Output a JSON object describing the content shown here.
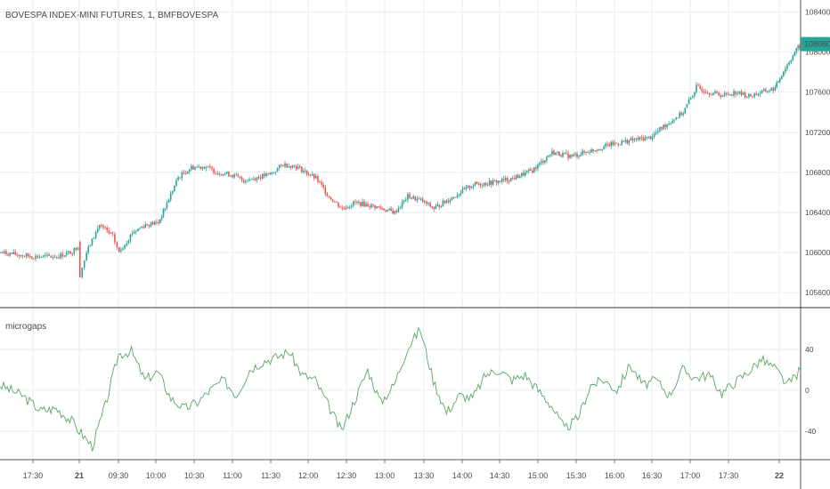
{
  "header": {
    "symbol_title": "BOVESPA INDEX-MINI FUTURES, 1, BMFBOVESPA"
  },
  "colors": {
    "up": "#26a69a",
    "down": "#ef5350",
    "grid": "#e7eef3",
    "indicator_line": "#5aa563",
    "price_tag_bg": "#26a69a",
    "price_tag_text": "#ffffff"
  },
  "main_pane": {
    "y_ticks": [
      "108400.0",
      "108000.0",
      "107600.0",
      "107200.0",
      "106800.0",
      "106400.0",
      "106000.0",
      "105600.0"
    ],
    "last_price": "108080.0"
  },
  "indicator_pane": {
    "name": "microgaps",
    "y_ticks": [
      "40",
      "0",
      "-40"
    ]
  },
  "x_axis": {
    "ticks": [
      "17:30",
      "21",
      "09:30",
      "10:00",
      "10:30",
      "11:00",
      "11:30",
      "12:00",
      "12:30",
      "13:00",
      "13:30",
      "14:00",
      "14:30",
      "15:00",
      "15:30",
      "16:00",
      "16:30",
      "17:00",
      "17:30",
      "22"
    ]
  },
  "chart_data": [
    {
      "type": "candlestick",
      "title": "BOVESPA INDEX-MINI FUTURES, 1, BMFBOVESPA",
      "ylim": [
        105460,
        108520
      ],
      "price_path": [
        {
          "x": "17:15",
          "y": 106000
        },
        {
          "x": "17:30",
          "y": 105960
        },
        {
          "x": "17:45",
          "y": 105960
        },
        {
          "x": "17:55",
          "y": 106010
        },
        {
          "x": "18:00",
          "y": 106090
        },
        {
          "x": "09:00",
          "y": 105780
        },
        {
          "x": "09:05",
          "y": 106000
        },
        {
          "x": "09:15",
          "y": 106280
        },
        {
          "x": "09:25",
          "y": 106160
        },
        {
          "x": "09:30",
          "y": 106000
        },
        {
          "x": "09:40",
          "y": 106200
        },
        {
          "x": "09:50",
          "y": 106280
        },
        {
          "x": "10:00",
          "y": 106300
        },
        {
          "x": "10:05",
          "y": 106450
        },
        {
          "x": "10:15",
          "y": 106750
        },
        {
          "x": "10:25",
          "y": 106850
        },
        {
          "x": "10:35",
          "y": 106860
        },
        {
          "x": "10:45",
          "y": 106800
        },
        {
          "x": "10:55",
          "y": 106780
        },
        {
          "x": "11:05",
          "y": 106720
        },
        {
          "x": "11:15",
          "y": 106750
        },
        {
          "x": "11:25",
          "y": 106780
        },
        {
          "x": "11:35",
          "y": 106880
        },
        {
          "x": "11:45",
          "y": 106860
        },
        {
          "x": "12:00",
          "y": 106740
        },
        {
          "x": "12:10",
          "y": 106560
        },
        {
          "x": "12:20",
          "y": 106440
        },
        {
          "x": "12:30",
          "y": 106500
        },
        {
          "x": "12:45",
          "y": 106460
        },
        {
          "x": "13:00",
          "y": 106400
        },
        {
          "x": "13:10",
          "y": 106560
        },
        {
          "x": "13:20",
          "y": 106520
        },
        {
          "x": "13:30",
          "y": 106440
        },
        {
          "x": "13:45",
          "y": 106560
        },
        {
          "x": "14:00",
          "y": 106680
        },
        {
          "x": "14:15",
          "y": 106700
        },
        {
          "x": "14:30",
          "y": 106740
        },
        {
          "x": "14:45",
          "y": 106820
        },
        {
          "x": "15:00",
          "y": 107000
        },
        {
          "x": "15:15",
          "y": 106960
        },
        {
          "x": "15:30",
          "y": 107020
        },
        {
          "x": "15:45",
          "y": 107080
        },
        {
          "x": "16:00",
          "y": 107120
        },
        {
          "x": "16:15",
          "y": 107150
        },
        {
          "x": "16:25",
          "y": 107260
        },
        {
          "x": "16:40",
          "y": 107400
        },
        {
          "x": "16:50",
          "y": 107650
        },
        {
          "x": "17:00",
          "y": 107600
        },
        {
          "x": "17:10",
          "y": 107570
        },
        {
          "x": "17:20",
          "y": 107600
        },
        {
          "x": "17:30",
          "y": 107560
        },
        {
          "x": "17:40",
          "y": 107600
        },
        {
          "x": "17:50",
          "y": 107640
        },
        {
          "x": "17:55",
          "y": 107780
        },
        {
          "x": "18:05",
          "y": 108000
        },
        {
          "x": "18:10",
          "y": 108080
        }
      ]
    },
    {
      "type": "line",
      "title": "microgaps",
      "ylim": [
        -68,
        80
      ],
      "values": [
        {
          "x": "17:15",
          "y": 5
        },
        {
          "x": "17:25",
          "y": -5
        },
        {
          "x": "17:35",
          "y": -20
        },
        {
          "x": "17:45",
          "y": -18
        },
        {
          "x": "17:55",
          "y": -30
        },
        {
          "x": "09:00",
          "y": -40
        },
        {
          "x": "09:10",
          "y": -55
        },
        {
          "x": "09:20",
          "y": -15
        },
        {
          "x": "09:30",
          "y": 35
        },
        {
          "x": "09:40",
          "y": 38
        },
        {
          "x": "09:50",
          "y": 10
        },
        {
          "x": "10:00",
          "y": 18
        },
        {
          "x": "10:10",
          "y": -8
        },
        {
          "x": "10:20",
          "y": -18
        },
        {
          "x": "10:30",
          "y": -12
        },
        {
          "x": "10:40",
          "y": 0
        },
        {
          "x": "10:50",
          "y": 10
        },
        {
          "x": "11:00",
          "y": -5
        },
        {
          "x": "11:10",
          "y": 20
        },
        {
          "x": "11:20",
          "y": 28
        },
        {
          "x": "11:30",
          "y": 32
        },
        {
          "x": "11:40",
          "y": 38
        },
        {
          "x": "11:50",
          "y": 15
        },
        {
          "x": "12:00",
          "y": 10
        },
        {
          "x": "12:10",
          "y": -15
        },
        {
          "x": "12:20",
          "y": -40
        },
        {
          "x": "12:30",
          "y": -10
        },
        {
          "x": "12:40",
          "y": 20
        },
        {
          "x": "12:50",
          "y": -12
        },
        {
          "x": "13:00",
          "y": 5
        },
        {
          "x": "13:10",
          "y": 40
        },
        {
          "x": "13:20",
          "y": 60
        },
        {
          "x": "13:30",
          "y": 10
        },
        {
          "x": "13:40",
          "y": -22
        },
        {
          "x": "13:50",
          "y": -5
        },
        {
          "x": "14:00",
          "y": -8
        },
        {
          "x": "14:10",
          "y": 15
        },
        {
          "x": "14:20",
          "y": 20
        },
        {
          "x": "14:30",
          "y": 10
        },
        {
          "x": "14:40",
          "y": 15
        },
        {
          "x": "14:50",
          "y": 0
        },
        {
          "x": "15:00",
          "y": -15
        },
        {
          "x": "15:10",
          "y": -38
        },
        {
          "x": "15:20",
          "y": -28
        },
        {
          "x": "15:30",
          "y": 5
        },
        {
          "x": "15:40",
          "y": 10
        },
        {
          "x": "15:50",
          "y": 0
        },
        {
          "x": "16:00",
          "y": 25
        },
        {
          "x": "16:10",
          "y": 5
        },
        {
          "x": "16:20",
          "y": 10
        },
        {
          "x": "16:30",
          "y": -5
        },
        {
          "x": "16:40",
          "y": 20
        },
        {
          "x": "16:50",
          "y": 12
        },
        {
          "x": "17:00",
          "y": 15
        },
        {
          "x": "17:10",
          "y": -3
        },
        {
          "x": "17:20",
          "y": 8
        },
        {
          "x": "17:30",
          "y": 18
        },
        {
          "x": "17:40",
          "y": 30
        },
        {
          "x": "17:50",
          "y": 22
        },
        {
          "x": "18:00",
          "y": 5
        },
        {
          "x": "18:10",
          "y": 20
        }
      ]
    }
  ]
}
